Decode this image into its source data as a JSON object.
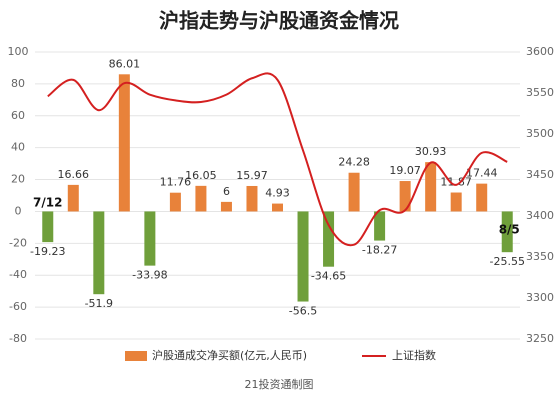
{
  "chart_data": {
    "type": "bar_line",
    "title": "沪指走势与沪股通资金情况",
    "source": "21投资通制图",
    "categories": [
      "7/12",
      null,
      null,
      null,
      null,
      null,
      null,
      null,
      null,
      null,
      null,
      null,
      null,
      null,
      null,
      null,
      null,
      null,
      "8/5"
    ],
    "series": [
      {
        "name": "沪股通成交净买额(亿元,人民币)",
        "type": "bar",
        "color": "#e8823a",
        "negative_color": "#6f9f3b",
        "values": [
          -19.23,
          16.66,
          -51.9,
          86.01,
          -33.98,
          11.76,
          16.05,
          6,
          15.97,
          4.93,
          -56.5,
          -34.65,
          24.28,
          -18.27,
          19.07,
          30.93,
          11.87,
          17.44,
          -25.55
        ]
      },
      {
        "name": "上证指数",
        "type": "line",
        "axis": "y2",
        "color": "#d42020",
        "values": [
          3546,
          3566,
          3529,
          3562,
          3548,
          3541,
          3539,
          3548,
          3568,
          3566,
          3480,
          3389,
          3365,
          3407,
          3407,
          3465,
          3438,
          3477,
          3466
        ]
      }
    ],
    "ylim": [
      -80,
      100
    ],
    "yticks": [
      -80,
      -60,
      -40,
      -20,
      0,
      20,
      40,
      60,
      80,
      100
    ],
    "y2lim": [
      3250,
      3600
    ],
    "y2ticks": [
      3250,
      3300,
      3350,
      3400,
      3450,
      3500,
      3550,
      3600
    ],
    "grid": true,
    "legend": "bottom"
  }
}
